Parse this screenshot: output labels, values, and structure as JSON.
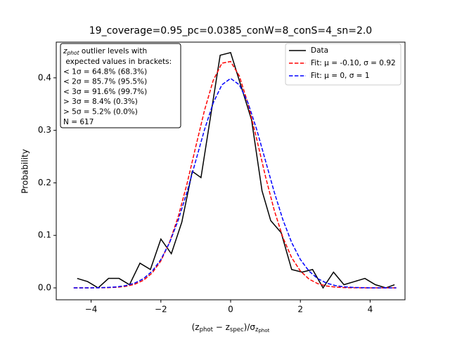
{
  "chart_data": {
    "type": "line",
    "title": "19_coverage=0.95_pc=0.0385_conW=8_conS=4_sn=2.0",
    "xlabel": [
      "(z",
      "phot",
      " − z",
      "spec",
      ")/σ",
      "z",
      "phot"
    ],
    "ylabel": "Probability",
    "xlim": [
      -5.0,
      5.0
    ],
    "ylim": [
      -0.0227,
      0.468
    ],
    "xticks": [
      {
        "value": -4,
        "label": "−4"
      },
      {
        "value": -2,
        "label": "−2"
      },
      0,
      2,
      4
    ],
    "yticks": [
      {
        "value": 0,
        "label": "0.0"
      },
      0.1,
      0.2,
      0.3,
      0.4
    ],
    "legend": "upper right",
    "series": [
      {
        "name": "Data",
        "color": "#000000",
        "dash": "solid",
        "x": [
          -4.4,
          -4.1,
          -3.8,
          -3.5,
          -3.2,
          -2.9,
          -2.6,
          -2.3,
          -2.0,
          -1.7,
          -1.4,
          -1.1,
          -0.85,
          -0.3,
          0.0,
          0.6,
          0.9,
          1.15,
          1.45,
          1.75,
          2.05,
          2.35,
          2.65,
          2.95,
          3.25,
          3.55,
          3.85,
          4.15,
          4.45,
          4.7
        ],
        "values": [
          0.018,
          0.012,
          0.0,
          0.018,
          0.018,
          0.006,
          0.047,
          0.035,
          0.093,
          0.065,
          0.125,
          0.222,
          0.21,
          0.443,
          0.448,
          0.32,
          0.185,
          0.128,
          0.105,
          0.035,
          0.03,
          0.035,
          0.0,
          0.03,
          0.006,
          0.012,
          0.018,
          0.006,
          0.0,
          0.006
        ]
      },
      {
        "name": "Fit: μ = -0.10, σ = 0.92",
        "color": "#ff0000",
        "dash": "dashed",
        "x": [
          -4.5,
          -4.25,
          -4.0,
          -3.75,
          -3.5,
          -3.25,
          -3.0,
          -2.75,
          -2.5,
          -2.25,
          -2.0,
          -1.75,
          -1.5,
          -1.25,
          -1.0,
          -0.75,
          -0.5,
          -0.25,
          0.0,
          0.25,
          0.5,
          0.75,
          1.0,
          1.25,
          1.5,
          1.75,
          2.0,
          2.25,
          2.5,
          2.75,
          3.0,
          3.25,
          3.5,
          3.75,
          4.0,
          4.25,
          4.5,
          4.75
        ],
        "values": [
          0,
          0,
          0.0001,
          0.0002,
          0.0005,
          0.0012,
          0.003,
          0.0069,
          0.0145,
          0.0283,
          0.0514,
          0.087,
          0.1362,
          0.1985,
          0.2688,
          0.3379,
          0.395,
          0.4279,
          0.4311,
          0.4035,
          0.3504,
          0.2828,
          0.212,
          0.148,
          0.0957,
          0.0575,
          0.0321,
          0.0166,
          0.008,
          0.0036,
          0.0015,
          0.0006,
          0.0002,
          0.0001,
          0,
          0,
          0,
          0
        ]
      },
      {
        "name": "Fit: μ = 0, σ = 1",
        "color": "#0000ff",
        "dash": "dashed",
        "x": [
          -4.5,
          -4.25,
          -4.0,
          -3.75,
          -3.5,
          -3.25,
          -3.0,
          -2.75,
          -2.5,
          -2.25,
          -2.0,
          -1.75,
          -1.5,
          -1.25,
          -1.0,
          -0.75,
          -0.5,
          -0.25,
          0.0,
          0.25,
          0.5,
          0.75,
          1.0,
          1.25,
          1.5,
          1.75,
          2.0,
          2.25,
          2.5,
          2.75,
          3.0,
          3.25,
          3.5,
          3.75,
          4.0,
          4.25,
          4.5,
          4.75
        ],
        "values": [
          0,
          0,
          0.0001,
          0.0004,
          0.0009,
          0.002,
          0.0044,
          0.0091,
          0.0175,
          0.0317,
          0.054,
          0.0863,
          0.1295,
          0.1826,
          0.242,
          0.3011,
          0.3521,
          0.3867,
          0.3989,
          0.3867,
          0.3521,
          0.3011,
          0.242,
          0.1826,
          0.1295,
          0.0863,
          0.054,
          0.0317,
          0.0175,
          0.0091,
          0.0044,
          0.002,
          0.0009,
          0.0004,
          0.0001,
          0,
          0,
          0
        ]
      }
    ],
    "annotation": {
      "head": [
        "z",
        "phot",
        " outlier levels with"
      ],
      "lines": [
        " expected values in brackets:",
        "< 1σ = 64.8% (68.3%)",
        "< 2σ = 85.7% (95.5%)",
        "< 3σ = 91.6% (99.7%)",
        "> 3σ = 8.4% (0.3%)",
        "> 5σ = 5.2% (0.0%)",
        "N = 617"
      ]
    }
  }
}
